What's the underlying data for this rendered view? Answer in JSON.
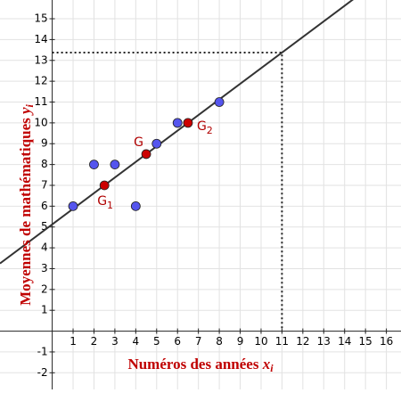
{
  "chart_data": {
    "type": "scatter",
    "xlabel": {
      "text": "Numéros des années",
      "var": "x",
      "sub": "i"
    },
    "ylabel": {
      "text": "Moyennes de mathématiques",
      "var": "y",
      "sub": "i"
    },
    "xlim": [
      -2.5,
      16.7
    ],
    "ylim": [
      -2.8,
      15.9
    ],
    "xticks": [
      1,
      2,
      3,
      4,
      5,
      6,
      7,
      8,
      9,
      10,
      11,
      12,
      13,
      14,
      15,
      16
    ],
    "yticks": [
      -2,
      -1,
      1,
      2,
      3,
      4,
      5,
      6,
      7,
      8,
      9,
      10,
      11,
      12,
      13,
      14,
      15
    ],
    "grid": true,
    "series": [
      {
        "color": "#5555ee",
        "x": [
          1,
          2,
          3,
          4,
          5,
          6,
          8
        ],
        "values": [
          6,
          8,
          8,
          6,
          9,
          10,
          11
        ]
      },
      {
        "color": "#cc0000",
        "x": [
          2.5,
          4.5,
          6.5
        ],
        "values": [
          7,
          8.5,
          10
        ],
        "labels": [
          {
            "base": "G",
            "sub": "1"
          },
          {
            "base": "G"
          },
          {
            "base": "G",
            "sub": "2"
          }
        ]
      }
    ],
    "regression": {
      "slope": 0.75,
      "intercept": 5.125
    },
    "guide": {
      "x": 11,
      "y": 13.375
    }
  }
}
